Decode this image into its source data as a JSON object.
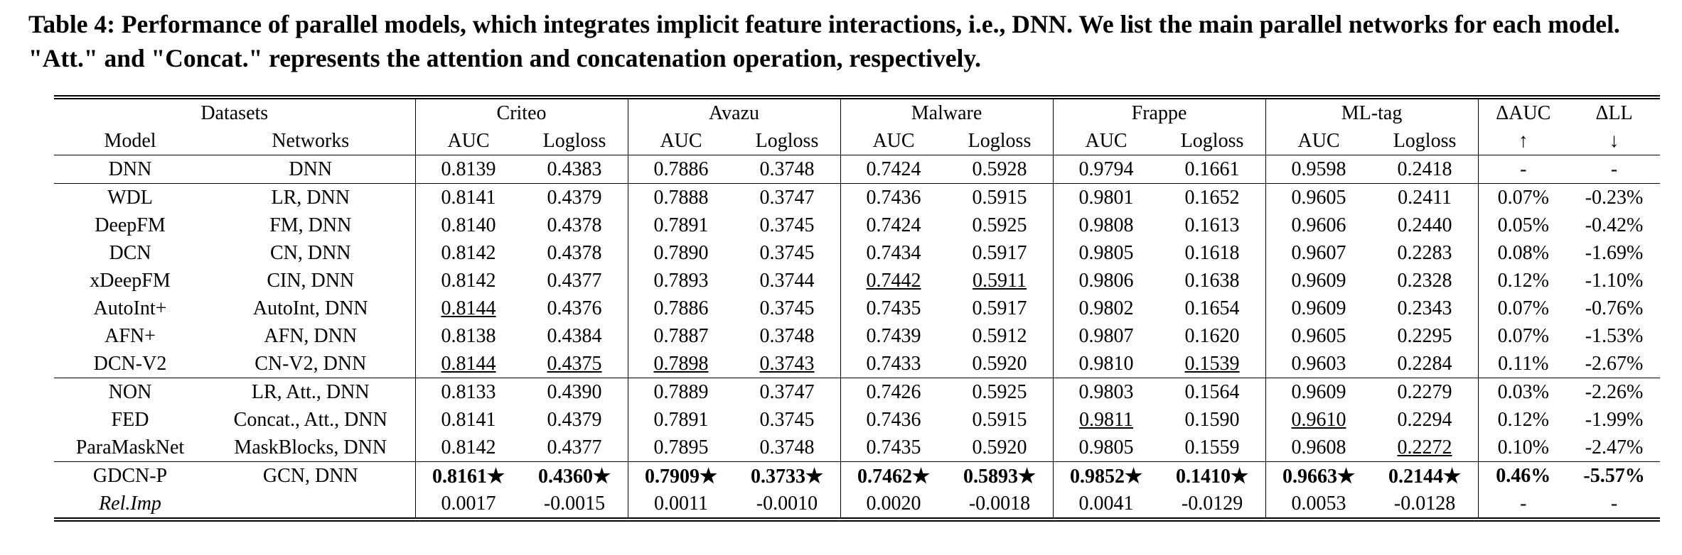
{
  "caption": "Table 4: Performance of parallel models, which integrates implicit feature interactions, i.e., DNN. We list the main parallel networks for each model. \"Att.\" and \"Concat.\" represents the attention and concatenation operation, respectively.",
  "header": {
    "datasets_label": "Datasets",
    "datasets": [
      "Criteo",
      "Avazu",
      "Malware",
      "Frappe",
      "ML-tag"
    ],
    "delta_auc": "ΔAUC",
    "delta_ll": "ΔLL",
    "model": "Model",
    "networks": "Networks",
    "metrics": [
      "AUC",
      "Logloss"
    ],
    "up": "↑",
    "down": "↓"
  },
  "table": {
    "groups": [
      [
        [
          "DNN",
          "DNN",
          "0.8139",
          "0.4383",
          "0.7886",
          "0.3748",
          "0.7424",
          "0.5928",
          "0.9794",
          "0.1661",
          "0.9598",
          "0.2418",
          "-",
          "-"
        ]
      ],
      [
        [
          "WDL",
          "LR, DNN",
          "0.8141",
          "0.4379",
          "0.7888",
          "0.3747",
          "0.7436",
          "0.5915",
          "0.9801",
          "0.1652",
          "0.9605",
          "0.2411",
          "0.07%",
          "-0.23%"
        ],
        [
          "DeepFM",
          "FM, DNN",
          "0.8140",
          "0.4378",
          "0.7891",
          "0.3745",
          "0.7424",
          "0.5925",
          "0.9808",
          "0.1613",
          "0.9606",
          "0.2440",
          "0.05%",
          "-0.42%"
        ],
        [
          "DCN",
          "CN, DNN",
          "0.8142",
          "0.4378",
          "0.7890",
          "0.3745",
          "0.7434",
          "0.5917",
          "0.9805",
          "0.1618",
          "0.9607",
          "0.2283",
          "0.08%",
          "-1.69%"
        ],
        [
          "xDeepFM",
          "CIN, DNN",
          "0.8142",
          "0.4377",
          "0.7893",
          "0.3744",
          "0.7442",
          "0.5911",
          "0.9806",
          "0.1638",
          "0.9609",
          "0.2328",
          "0.12%",
          "-1.10%"
        ],
        [
          "AutoInt+",
          "AutoInt, DNN",
          "0.8144",
          "0.4376",
          "0.7886",
          "0.3745",
          "0.7435",
          "0.5917",
          "0.9802",
          "0.1654",
          "0.9609",
          "0.2343",
          "0.07%",
          "-0.76%"
        ],
        [
          "AFN+",
          "AFN, DNN",
          "0.8138",
          "0.4384",
          "0.7887",
          "0.3748",
          "0.7439",
          "0.5912",
          "0.9807",
          "0.1620",
          "0.9605",
          "0.2295",
          "0.07%",
          "-1.53%"
        ],
        [
          "DCN-V2",
          "CN-V2, DNN",
          "0.8144",
          "0.4375",
          "0.7898",
          "0.3743",
          "0.7433",
          "0.5920",
          "0.9810",
          "0.1539",
          "0.9603",
          "0.2284",
          "0.11%",
          "-2.67%"
        ]
      ],
      [
        [
          "NON",
          "LR, Att., DNN",
          "0.8133",
          "0.4390",
          "0.7889",
          "0.3747",
          "0.7426",
          "0.5925",
          "0.9803",
          "0.1564",
          "0.9609",
          "0.2279",
          "0.03%",
          "-2.26%"
        ],
        [
          "FED",
          "Concat., Att., DNN",
          "0.8141",
          "0.4379",
          "0.7891",
          "0.3745",
          "0.7436",
          "0.5915",
          "0.9811",
          "0.1590",
          "0.9610",
          "0.2294",
          "0.12%",
          "-1.99%"
        ],
        [
          "ParaMaskNet",
          "MaskBlocks, DNN",
          "0.8142",
          "0.4377",
          "0.7895",
          "0.3748",
          "0.7435",
          "0.5920",
          "0.9805",
          "0.1559",
          "0.9608",
          "0.2272",
          "0.10%",
          "-2.47%"
        ]
      ],
      [
        [
          "GDCN-P",
          "GCN, DNN",
          "0.8161★",
          "0.4360★",
          "0.7909★",
          "0.3733★",
          "0.7462★",
          "0.5893★",
          "0.9852★",
          "0.1410★",
          "0.9663★",
          "0.2144★",
          "0.46%",
          "-5.57%"
        ],
        [
          "Rel.Imp",
          "",
          "0.0017",
          "-0.0015",
          "0.0011",
          "-0.0010",
          "0.0020",
          "-0.0018",
          "0.0041",
          "-0.0129",
          "0.0053",
          "-0.0128",
          "-",
          "-"
        ]
      ]
    ],
    "underlined": [
      [
        1,
        3,
        6
      ],
      [
        1,
        3,
        7
      ],
      [
        1,
        4,
        2
      ],
      [
        1,
        6,
        2
      ],
      [
        1,
        6,
        3
      ],
      [
        1,
        6,
        4
      ],
      [
        1,
        6,
        5
      ],
      [
        1,
        6,
        9
      ],
      [
        2,
        1,
        8
      ],
      [
        2,
        1,
        10
      ],
      [
        2,
        2,
        11
      ]
    ],
    "bold_rows": [
      [
        3,
        0
      ]
    ],
    "italic_cells": [
      [
        3,
        1,
        0
      ]
    ]
  }
}
